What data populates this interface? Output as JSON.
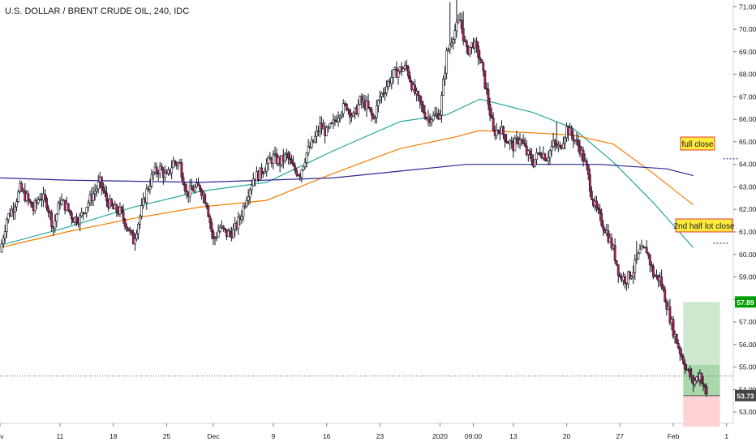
{
  "title": "U.S. DOLLAR / BRENT CRUDE OIL, 240, IDC",
  "colors": {
    "up": "#ffffff",
    "down": "#c2185b",
    "ema_green": "#26a69a",
    "ema_orange": "#f57c00",
    "ma_navy": "#2c2896",
    "tp_zone": "#c8e6c9",
    "sl_zone": "#ffcdd2",
    "tp_label": "#00a000",
    "price_label": "#444444",
    "annotation_fill": "#ffeb3b",
    "annotation_border": "#e53935"
  },
  "annotations": {
    "full_close": "full close",
    "half_close": "2nd half lot close"
  },
  "chart_data": {
    "type": "candlestick",
    "title": "U.S. DOLLAR / BRENT CRUDE OIL, 240, IDC",
    "xlabel": "",
    "ylabel": "",
    "ylim": [
      52.5,
      71.3
    ],
    "y_ticks": [
      "53.00",
      "54.00",
      "55.00",
      "56.00",
      "57.00",
      "58.00",
      "59.00",
      "60.00",
      "61.00",
      "62.00",
      "63.00",
      "64.00",
      "65.00",
      "66.00",
      "67.00",
      "68.00",
      "69.00",
      "70.00",
      "71.00"
    ],
    "x_ticks": [
      {
        "label": "ov",
        "x": 0
      },
      {
        "label": "11",
        "x": 9
      },
      {
        "label": "18",
        "x": 17
      },
      {
        "label": "25",
        "x": 25
      },
      {
        "label": "Dec",
        "x": 32
      },
      {
        "label": "9",
        "x": 41
      },
      {
        "label": "16",
        "x": 49
      },
      {
        "label": "23",
        "x": 57
      },
      {
        "label": "2020",
        "x": 66
      },
      {
        "label": "09:00",
        "x": 71
      },
      {
        "label": "13",
        "x": 77
      },
      {
        "label": "20",
        "x": 85
      },
      {
        "label": "27",
        "x": 93
      },
      {
        "label": "Feb",
        "x": 101
      },
      {
        "label": "1",
        "x": 109
      }
    ],
    "key_points": [
      [
        0,
        60.1
      ],
      [
        1,
        61.6
      ],
      [
        2,
        62.1
      ],
      [
        3,
        62.9
      ],
      [
        4,
        62.5
      ],
      [
        5,
        62.0
      ],
      [
        6,
        62.6
      ],
      [
        7,
        62.3
      ],
      [
        8,
        61.2
      ],
      [
        9,
        62.4
      ],
      [
        10,
        62.1
      ],
      [
        11,
        61.6
      ],
      [
        12,
        61.6
      ],
      [
        13,
        62.2
      ],
      [
        14,
        62.7
      ],
      [
        15,
        63.2
      ],
      [
        16,
        62.4
      ],
      [
        17,
        62.0
      ],
      [
        18,
        61.9
      ],
      [
        19,
        61.3
      ],
      [
        20,
        60.6
      ],
      [
        21,
        61.7
      ],
      [
        22,
        62.8
      ],
      [
        23,
        63.6
      ],
      [
        24,
        63.8
      ],
      [
        25,
        63.4
      ],
      [
        26,
        64.1
      ],
      [
        27,
        64.0
      ],
      [
        28,
        62.7
      ],
      [
        29,
        62.9
      ],
      [
        30,
        63.0
      ],
      [
        31,
        62.3
      ],
      [
        32,
        60.6
      ],
      [
        33,
        61.2
      ],
      [
        34,
        60.9
      ],
      [
        35,
        61.0
      ],
      [
        36,
        61.6
      ],
      [
        37,
        62.6
      ],
      [
        38,
        63.4
      ],
      [
        39,
        63.6
      ],
      [
        40,
        64.0
      ],
      [
        41,
        64.3
      ],
      [
        42,
        64.1
      ],
      [
        43,
        64.4
      ],
      [
        44,
        63.8
      ],
      [
        45,
        63.6
      ],
      [
        46,
        64.5
      ],
      [
        47,
        65.0
      ],
      [
        48,
        65.7
      ],
      [
        49,
        65.4
      ],
      [
        50,
        65.8
      ],
      [
        51,
        66.4
      ],
      [
        52,
        66.6
      ],
      [
        53,
        66.1
      ],
      [
        54,
        66.8
      ],
      [
        55,
        66.6
      ],
      [
        56,
        66.0
      ],
      [
        57,
        67.0
      ],
      [
        58,
        67.5
      ],
      [
        59,
        68.0
      ],
      [
        60,
        68.2
      ],
      [
        61,
        68.3
      ],
      [
        62,
        67.3
      ],
      [
        63,
        66.7
      ],
      [
        64,
        66.1
      ],
      [
        65,
        66.1
      ],
      [
        66,
        66.3
      ],
      [
        67,
        68.9
      ],
      [
        68,
        69.8
      ],
      [
        69,
        70.4
      ],
      [
        70,
        69.0
      ],
      [
        71,
        69.4
      ],
      [
        72,
        68.7
      ],
      [
        73,
        67.2
      ],
      [
        74,
        65.4
      ],
      [
        75,
        65.6
      ],
      [
        76,
        65.1
      ],
      [
        77,
        64.8
      ],
      [
        78,
        65.2
      ],
      [
        79,
        64.5
      ],
      [
        80,
        64.1
      ],
      [
        81,
        64.6
      ],
      [
        82,
        64.3
      ],
      [
        83,
        64.9
      ],
      [
        84,
        64.7
      ],
      [
        85,
        65.6
      ],
      [
        86,
        65.2
      ],
      [
        87,
        64.7
      ],
      [
        88,
        63.8
      ],
      [
        89,
        62.3
      ],
      [
        90,
        61.6
      ],
      [
        91,
        61.0
      ],
      [
        92,
        60.2
      ],
      [
        93,
        59.0
      ],
      [
        94,
        58.9
      ],
      [
        95,
        59.3
      ],
      [
        96,
        60.1
      ],
      [
        97,
        60.2
      ],
      [
        98,
        59.1
      ],
      [
        99,
        58.9
      ],
      [
        100,
        57.8
      ],
      [
        101,
        56.6
      ],
      [
        102,
        55.7
      ],
      [
        103,
        54.9
      ],
      [
        104,
        54.3
      ],
      [
        105,
        54.7
      ],
      [
        106,
        53.73
      ]
    ],
    "series": [
      {
        "name": "",
        "values": [
          [
            0,
            60.4
          ],
          [
            10,
            61.2
          ],
          [
            20,
            62.1
          ],
          [
            30,
            62.8
          ],
          [
            40,
            63.2
          ],
          [
            50,
            64.6
          ],
          [
            60,
            65.9
          ],
          [
            67,
            66.2
          ],
          [
            72,
            66.9
          ],
          [
            80,
            66.3
          ],
          [
            86,
            65.6
          ],
          [
            92,
            64.1
          ],
          [
            98,
            62.3
          ],
          [
            104,
            60.3
          ]
        ]
      },
      {
        "name": "",
        "values": [
          [
            0,
            60.3
          ],
          [
            10,
            61.0
          ],
          [
            20,
            61.6
          ],
          [
            30,
            62.1
          ],
          [
            40,
            62.4
          ],
          [
            50,
            63.6
          ],
          [
            60,
            64.7
          ],
          [
            68,
            65.2
          ],
          [
            72,
            65.5
          ],
          [
            80,
            65.4
          ],
          [
            86,
            65.3
          ],
          [
            92,
            64.9
          ],
          [
            98,
            63.6
          ],
          [
            104,
            62.2
          ]
        ]
      },
      {
        "name": "",
        "values": [
          [
            0,
            63.4
          ],
          [
            10,
            63.3
          ],
          [
            20,
            63.25
          ],
          [
            30,
            63.2
          ],
          [
            40,
            63.3
          ],
          [
            50,
            63.4
          ],
          [
            60,
            63.7
          ],
          [
            70,
            64.0
          ],
          [
            80,
            64.0
          ],
          [
            90,
            64.0
          ],
          [
            100,
            63.8
          ],
          [
            104,
            63.5
          ]
        ]
      }
    ],
    "last_price": "53.73",
    "target_price": "57.89",
    "trade_zone": {
      "x_start": 102.5,
      "x_end": 108,
      "entry": 53.73,
      "target": 57.89,
      "stop": 52.35
    },
    "horizontal_ref": 54.6,
    "extra_markers": [
      {
        "y": 64.25,
        "x": 108.5
      },
      {
        "y": 60.5,
        "x": 107
      }
    ]
  }
}
